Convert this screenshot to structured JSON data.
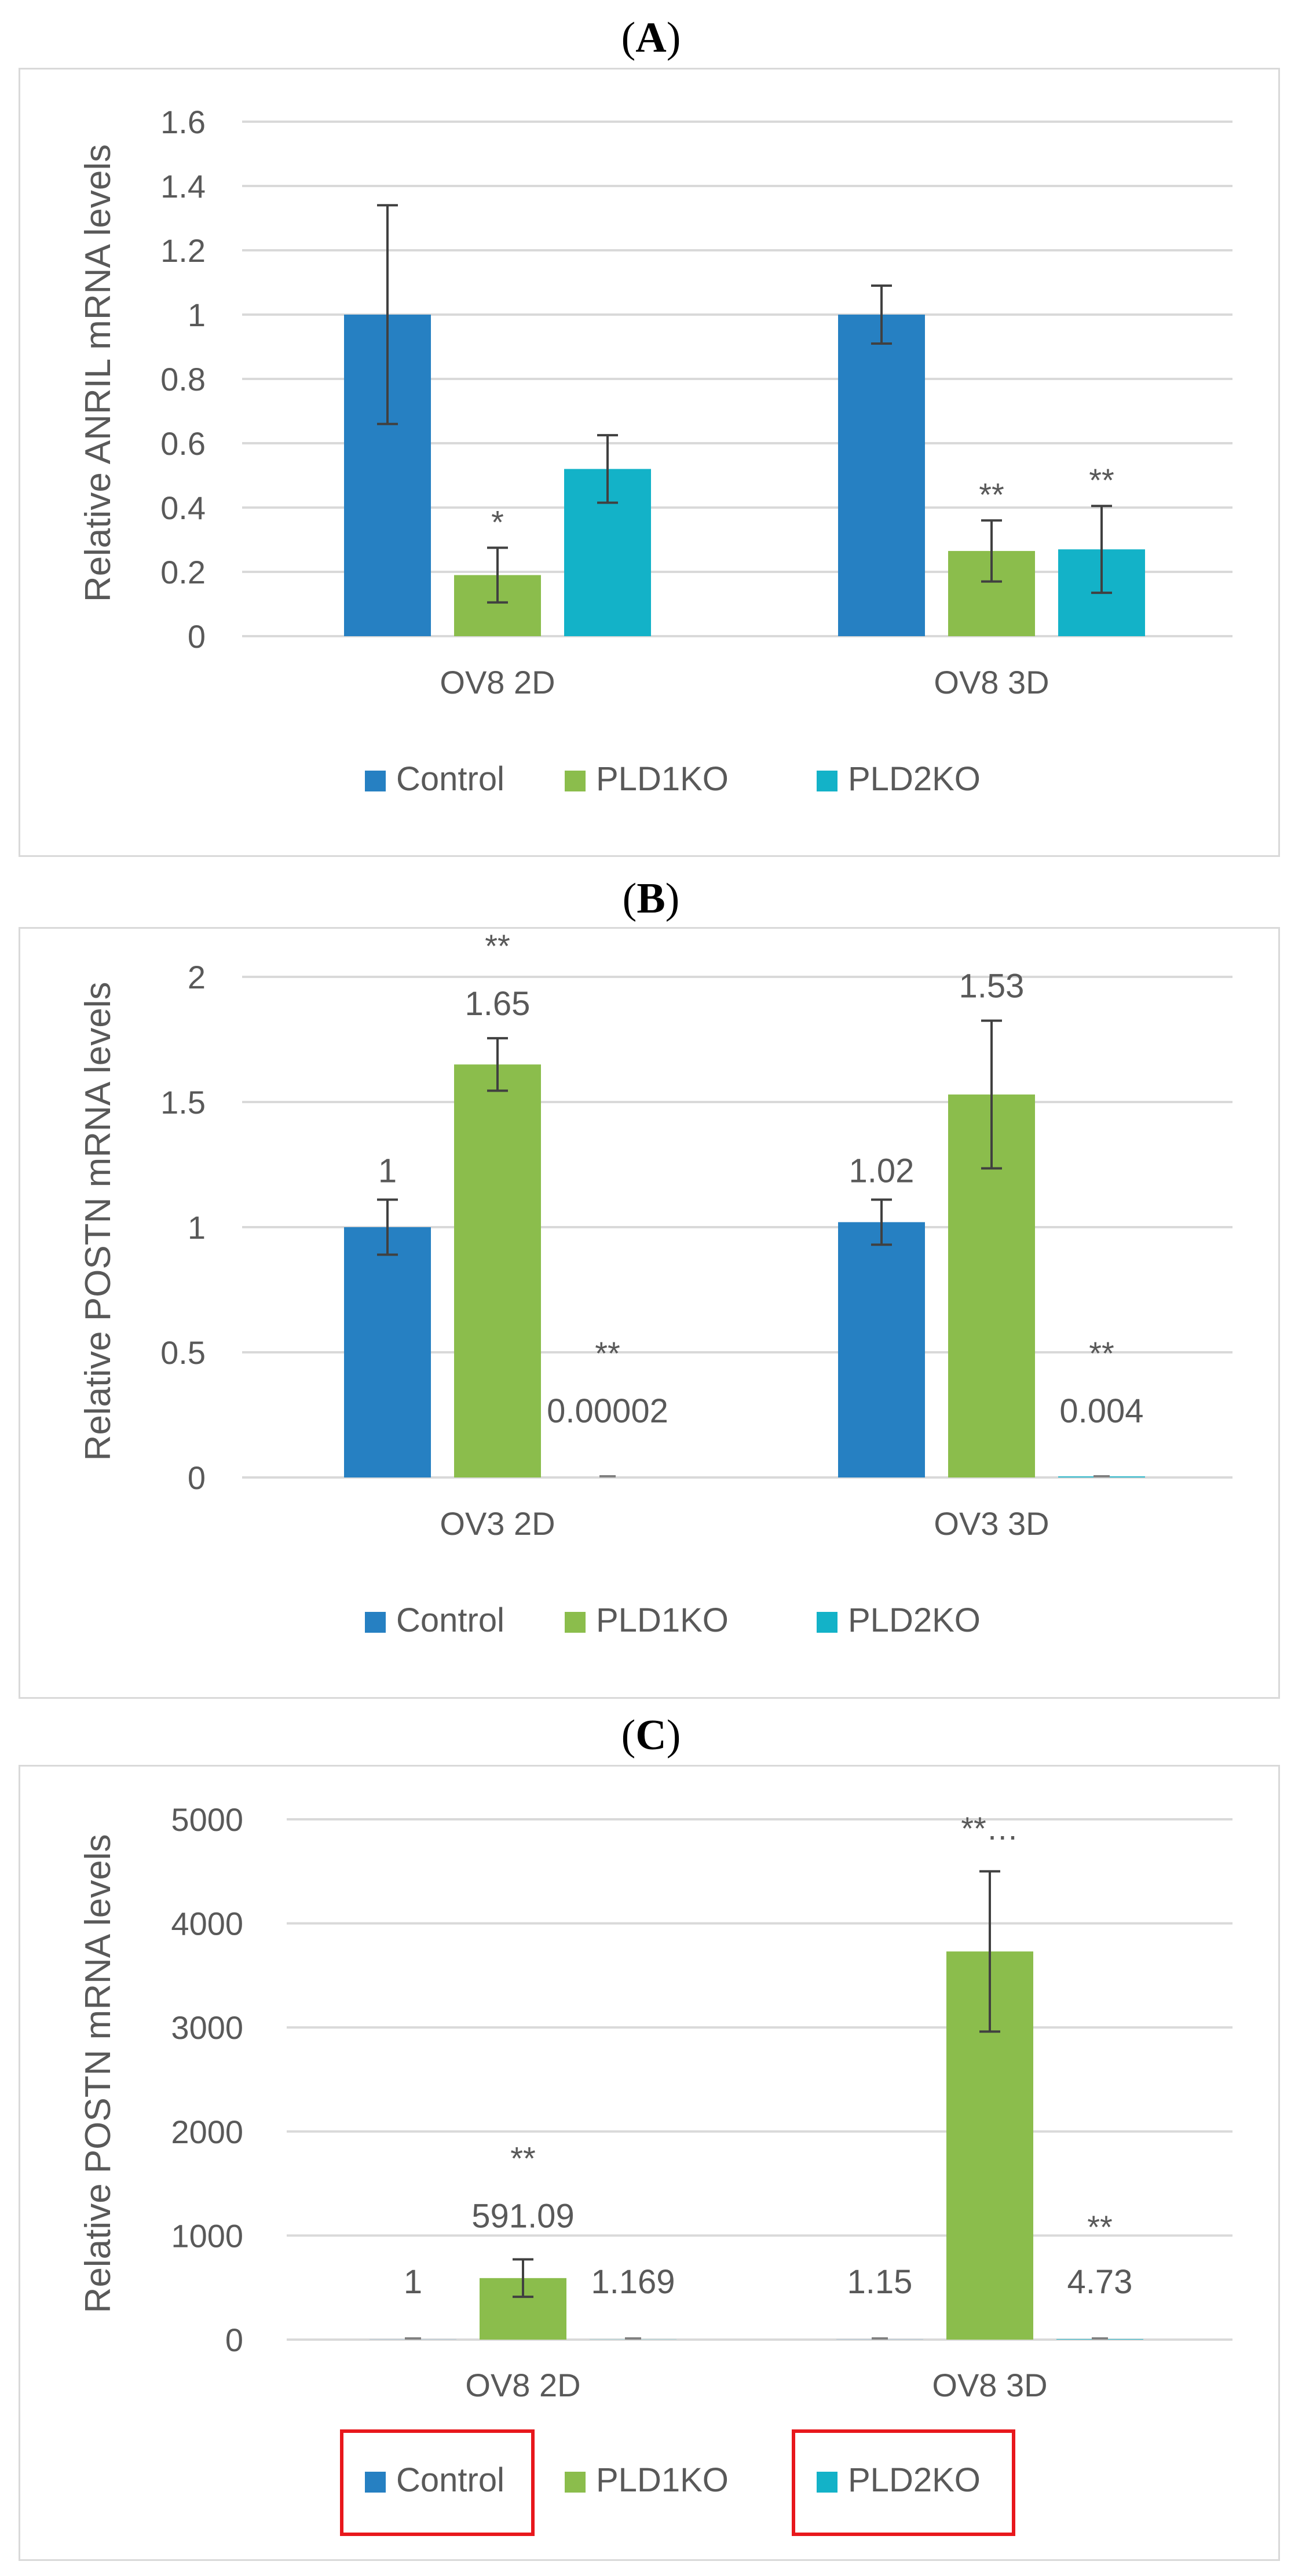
{
  "colors": {
    "control": "#2680c2",
    "pld1ko": "#8bbd4c",
    "pld2ko": "#13b2c8",
    "grid": "#d9d9d9",
    "axis_text": "#595959",
    "highlight": "#e8171c"
  },
  "chart_data": [
    {
      "id": "A",
      "panel_label": "A",
      "type": "bar",
      "ylabel": "Relative ANRIL mRNA levels",
      "ylim": [
        0,
        1.6
      ],
      "yticks": [
        0,
        0.2,
        0.4,
        0.6,
        0.8,
        1,
        1.2,
        1.4,
        1.6
      ],
      "ytick_labels": [
        "0",
        "0.2",
        "0.4",
        "0.6",
        "0.8",
        "1",
        "1.2",
        "1.4",
        "1.6"
      ],
      "categories": [
        "OV8 2D",
        "OV8 3D"
      ],
      "series": [
        {
          "name": "Control",
          "values": [
            1.0,
            1.0
          ],
          "errors": [
            0.34,
            0.09
          ],
          "sig": [
            "",
            ""
          ],
          "labels": [
            "",
            ""
          ]
        },
        {
          "name": "PLD1KO",
          "values": [
            0.19,
            0.265
          ],
          "errors": [
            0.085,
            0.095
          ],
          "sig": [
            "*",
            "**"
          ],
          "labels": [
            "",
            ""
          ]
        },
        {
          "name": "PLD2KO",
          "values": [
            0.52,
            0.27
          ],
          "errors": [
            0.105,
            0.135
          ],
          "sig": [
            "",
            "**"
          ],
          "labels": [
            "",
            ""
          ]
        }
      ],
      "legend": [
        "Control",
        "PLD1KO",
        "PLD2KO"
      ],
      "legend_highlight": [
        false,
        false,
        false
      ]
    },
    {
      "id": "B",
      "panel_label": "B",
      "type": "bar",
      "ylabel": "Relative POSTN mRNA levels",
      "ylim": [
        0,
        2
      ],
      "yticks": [
        0,
        0.5,
        1,
        1.5,
        2
      ],
      "ytick_labels": [
        "0",
        "0.5",
        "1",
        "1.5",
        "2"
      ],
      "categories": [
        "OV3 2D",
        "OV3 3D"
      ],
      "series": [
        {
          "name": "Control",
          "values": [
            1.0,
            1.02
          ],
          "errors": [
            0.11,
            0.09
          ],
          "sig": [
            "",
            ""
          ],
          "labels": [
            "1",
            "1.02"
          ]
        },
        {
          "name": "PLD1KO",
          "values": [
            1.65,
            1.53
          ],
          "errors": [
            0.105,
            0.295
          ],
          "sig": [
            "**",
            ""
          ],
          "labels": [
            "1.65",
            "1.53"
          ]
        },
        {
          "name": "PLD2KO",
          "values": [
            2e-05,
            0.004
          ],
          "errors": [
            0,
            0
          ],
          "sig": [
            "**",
            "**"
          ],
          "labels": [
            "0.00002",
            "0.004"
          ]
        }
      ],
      "legend": [
        "Control",
        "PLD1KO",
        "PLD2KO"
      ],
      "legend_highlight": [
        false,
        false,
        false
      ]
    },
    {
      "id": "C",
      "panel_label": "C",
      "type": "bar",
      "ylabel": "Relative POSTN mRNA levels",
      "ylim": [
        0,
        5000
      ],
      "yticks": [
        0,
        1000,
        2000,
        3000,
        4000,
        5000
      ],
      "ytick_labels": [
        "0",
        "1000",
        "2000",
        "3000",
        "4000",
        "5000"
      ],
      "categories": [
        "OV8 2D",
        "OV8 3D"
      ],
      "series": [
        {
          "name": "Control",
          "values": [
            1,
            1.15
          ],
          "errors": [
            0,
            0
          ],
          "sig": [
            "",
            ""
          ],
          "labels": [
            "1",
            "1.15"
          ]
        },
        {
          "name": "PLD1KO",
          "values": [
            591.09,
            3730
          ],
          "errors": [
            180,
            770
          ],
          "sig": [
            "**",
            "**…"
          ],
          "labels": [
            "591.09",
            ""
          ]
        },
        {
          "name": "PLD2KO",
          "values": [
            1.169,
            4.73
          ],
          "errors": [
            0,
            0
          ],
          "sig": [
            "",
            "**"
          ],
          "labels": [
            "1.169",
            "4.73"
          ]
        }
      ],
      "legend": [
        "Control",
        "PLD1KO",
        "PLD2KO"
      ],
      "legend_highlight": [
        true,
        false,
        true
      ]
    }
  ]
}
